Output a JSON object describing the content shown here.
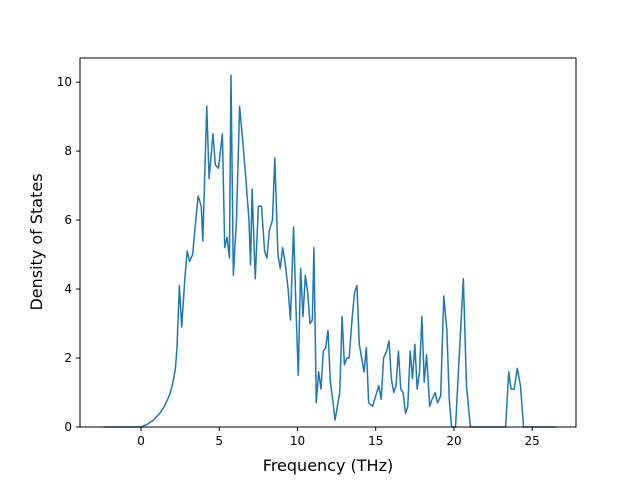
{
  "chart_data": {
    "type": "line",
    "title": "",
    "xlabel": "Frequency (THz)",
    "ylabel": "Density of States",
    "xlim": [
      -3.9,
      27.8
    ],
    "ylim": [
      0,
      10.7
    ],
    "xticks": [
      0,
      5,
      10,
      15,
      20,
      25
    ],
    "yticks": [
      0,
      2,
      4,
      6,
      8,
      10
    ],
    "grid": false,
    "legend": "none",
    "line_color": "#1f77b4",
    "series": [
      {
        "name": "",
        "points": [
          [
            -2.4,
            0.0
          ],
          [
            0.0,
            0.0
          ],
          [
            0.4,
            0.08
          ],
          [
            0.8,
            0.2
          ],
          [
            1.2,
            0.4
          ],
          [
            1.5,
            0.6
          ],
          [
            1.8,
            0.9
          ],
          [
            2.0,
            1.2
          ],
          [
            2.2,
            1.7
          ],
          [
            2.3,
            2.3
          ],
          [
            2.45,
            4.1
          ],
          [
            2.6,
            2.9
          ],
          [
            2.8,
            4.3
          ],
          [
            2.95,
            5.1
          ],
          [
            3.1,
            4.8
          ],
          [
            3.3,
            5.0
          ],
          [
            3.5,
            6.0
          ],
          [
            3.65,
            6.7
          ],
          [
            3.85,
            6.4
          ],
          [
            3.95,
            5.4
          ],
          [
            4.2,
            9.3
          ],
          [
            4.35,
            7.2
          ],
          [
            4.6,
            8.5
          ],
          [
            4.75,
            7.6
          ],
          [
            4.95,
            7.5
          ],
          [
            5.2,
            8.5
          ],
          [
            5.35,
            5.2
          ],
          [
            5.5,
            5.5
          ],
          [
            5.65,
            4.9
          ],
          [
            5.75,
            10.2
          ],
          [
            5.9,
            4.4
          ],
          [
            6.1,
            6.0
          ],
          [
            6.3,
            9.3
          ],
          [
            6.5,
            8.3
          ],
          [
            6.7,
            7.2
          ],
          [
            6.9,
            6.0
          ],
          [
            7.0,
            4.7
          ],
          [
            7.1,
            6.9
          ],
          [
            7.3,
            4.3
          ],
          [
            7.5,
            6.4
          ],
          [
            7.7,
            6.4
          ],
          [
            7.9,
            5.1
          ],
          [
            8.05,
            4.9
          ],
          [
            8.2,
            5.7
          ],
          [
            8.4,
            6.0
          ],
          [
            8.55,
            7.8
          ],
          [
            8.75,
            5.0
          ],
          [
            8.9,
            4.6
          ],
          [
            9.05,
            5.2
          ],
          [
            9.2,
            4.8
          ],
          [
            9.4,
            4.0
          ],
          [
            9.55,
            3.1
          ],
          [
            9.75,
            5.8
          ],
          [
            9.9,
            3.5
          ],
          [
            10.05,
            1.5
          ],
          [
            10.2,
            4.6
          ],
          [
            10.35,
            3.2
          ],
          [
            10.5,
            4.4
          ],
          [
            10.65,
            3.9
          ],
          [
            10.8,
            3.0
          ],
          [
            10.95,
            3.1
          ],
          [
            11.05,
            5.2
          ],
          [
            11.2,
            0.7
          ],
          [
            11.35,
            1.6
          ],
          [
            11.5,
            1.1
          ],
          [
            11.65,
            2.2
          ],
          [
            11.8,
            2.3
          ],
          [
            11.95,
            2.8
          ],
          [
            12.1,
            1.3
          ],
          [
            12.25,
            0.8
          ],
          [
            12.4,
            0.2
          ],
          [
            12.55,
            0.6
          ],
          [
            12.7,
            1.0
          ],
          [
            12.85,
            3.2
          ],
          [
            13.0,
            1.8
          ],
          [
            13.15,
            2.0
          ],
          [
            13.3,
            2.0
          ],
          [
            13.5,
            3.2
          ],
          [
            13.65,
            3.9
          ],
          [
            13.8,
            4.1
          ],
          [
            13.95,
            2.4
          ],
          [
            14.1,
            2.0
          ],
          [
            14.25,
            1.6
          ],
          [
            14.4,
            2.3
          ],
          [
            14.55,
            0.7
          ],
          [
            14.8,
            0.6
          ],
          [
            15.0,
            0.9
          ],
          [
            15.2,
            1.2
          ],
          [
            15.35,
            0.8
          ],
          [
            15.5,
            2.0
          ],
          [
            15.7,
            2.2
          ],
          [
            15.85,
            2.5
          ],
          [
            16.0,
            1.4
          ],
          [
            16.15,
            1.0
          ],
          [
            16.3,
            1.2
          ],
          [
            16.45,
            2.2
          ],
          [
            16.6,
            1.1
          ],
          [
            16.75,
            1.0
          ],
          [
            16.9,
            0.4
          ],
          [
            17.05,
            0.6
          ],
          [
            17.2,
            2.2
          ],
          [
            17.35,
            1.4
          ],
          [
            17.5,
            2.4
          ],
          [
            17.65,
            1.1
          ],
          [
            17.8,
            1.6
          ],
          [
            17.95,
            3.2
          ],
          [
            18.1,
            1.3
          ],
          [
            18.25,
            2.1
          ],
          [
            18.45,
            0.6
          ],
          [
            18.6,
            0.8
          ],
          [
            18.8,
            1.0
          ],
          [
            18.95,
            0.7
          ],
          [
            19.15,
            0.9
          ],
          [
            19.35,
            3.8
          ],
          [
            19.55,
            2.8
          ],
          [
            19.7,
            0.8
          ],
          [
            19.85,
            0.0
          ],
          [
            20.1,
            0.0
          ],
          [
            20.6,
            4.3
          ],
          [
            20.8,
            1.2
          ],
          [
            21.05,
            0.0
          ],
          [
            23.3,
            0.0
          ],
          [
            23.5,
            1.6
          ],
          [
            23.65,
            1.1
          ],
          [
            23.85,
            1.1
          ],
          [
            24.05,
            1.7
          ],
          [
            24.25,
            1.2
          ],
          [
            24.45,
            0.0
          ],
          [
            26.5,
            0.0
          ]
        ]
      }
    ]
  }
}
